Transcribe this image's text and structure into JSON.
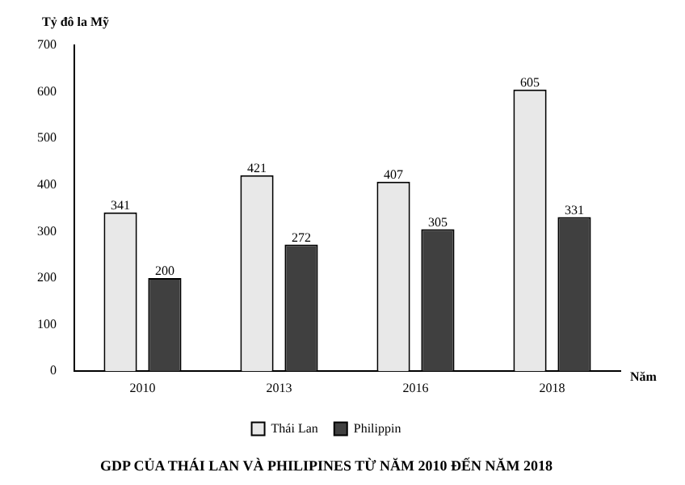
{
  "chart_data": {
    "type": "bar",
    "title": "GDP CỦA THÁI LAN VÀ PHILIPINES TỪ NĂM 2010 ĐẾN NĂM 2018",
    "xlabel": "Năm",
    "ylabel": "Tỷ đô la Mỹ",
    "categories": [
      "2010",
      "2013",
      "2016",
      "2018"
    ],
    "series": [
      {
        "name": "Thái Lan",
        "color": "#e8e8e8",
        "values": [
          341,
          421,
          407,
          605
        ]
      },
      {
        "name": "Philippin",
        "color": "#404040",
        "values": [
          200,
          272,
          305,
          331
        ]
      }
    ],
    "ylim": [
      0,
      700
    ],
    "yticks": [
      0,
      100,
      200,
      300,
      400,
      500,
      600,
      700
    ],
    "grid": false,
    "legend": "bottom",
    "data_labels": true
  }
}
